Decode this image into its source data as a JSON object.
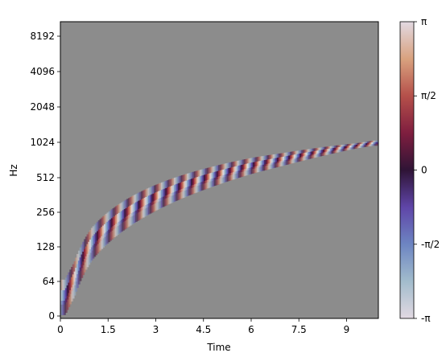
{
  "chart_data": {
    "type": "heatmap",
    "title": "",
    "xlabel": "Time",
    "ylabel": "Hz",
    "xlim": [
      0,
      10
    ],
    "ylim_hz": [
      0,
      11025
    ],
    "y_scale": "log2-like (linear below 64 Hz)",
    "x_ticks": [
      {
        "value": 0,
        "label": "0"
      },
      {
        "value": 1.5,
        "label": "1.5"
      },
      {
        "value": 3,
        "label": "3"
      },
      {
        "value": 4.5,
        "label": "4.5"
      },
      {
        "value": 6,
        "label": "6"
      },
      {
        "value": 7.5,
        "label": "7.5"
      },
      {
        "value": 9,
        "label": "9"
      }
    ],
    "y_ticks": [
      {
        "value": 0,
        "label": "0"
      },
      {
        "value": 64,
        "label": "64"
      },
      {
        "value": 128,
        "label": "128"
      },
      {
        "value": 256,
        "label": "256"
      },
      {
        "value": 512,
        "label": "512"
      },
      {
        "value": 1024,
        "label": "1024"
      },
      {
        "value": 2048,
        "label": "2048"
      },
      {
        "value": 4096,
        "label": "4096"
      },
      {
        "value": 8192,
        "label": "8192"
      }
    ],
    "background_color": "#8c8c8c",
    "colormap": "twilight",
    "colorbar": {
      "range": [
        "-π",
        "π"
      ],
      "ticks": [
        {
          "value": -3.14159,
          "label": "-π"
        },
        {
          "value": -1.5708,
          "label": "-π/2"
        },
        {
          "value": 0,
          "label": "0"
        },
        {
          "value": 1.5708,
          "label": "π/2"
        },
        {
          "value": 3.14159,
          "label": "π"
        }
      ],
      "colors": [
        "#e2d9e2",
        "#a2bccc",
        "#6d85c2",
        "#5f45a8",
        "#2f1436",
        "#7f1e3f",
        "#b5504a",
        "#d9a27f",
        "#e2d9e2"
      ]
    },
    "chirp_track": {
      "description": "phase-oscillating chirp rising from ~0 Hz to ~1024 Hz",
      "points": [
        {
          "t": 0.15,
          "hz": 30
        },
        {
          "t": 0.5,
          "hz": 70
        },
        {
          "t": 1.0,
          "hz": 130
        },
        {
          "t": 2.0,
          "hz": 230
        },
        {
          "t": 3.0,
          "hz": 330
        },
        {
          "t": 4.0,
          "hz": 430
        },
        {
          "t": 5.0,
          "hz": 530
        },
        {
          "t": 6.0,
          "hz": 630
        },
        {
          "t": 7.0,
          "hz": 720
        },
        {
          "t": 8.0,
          "hz": 820
        },
        {
          "t": 9.0,
          "hz": 920
        },
        {
          "t": 9.85,
          "hz": 1000
        }
      ]
    }
  }
}
